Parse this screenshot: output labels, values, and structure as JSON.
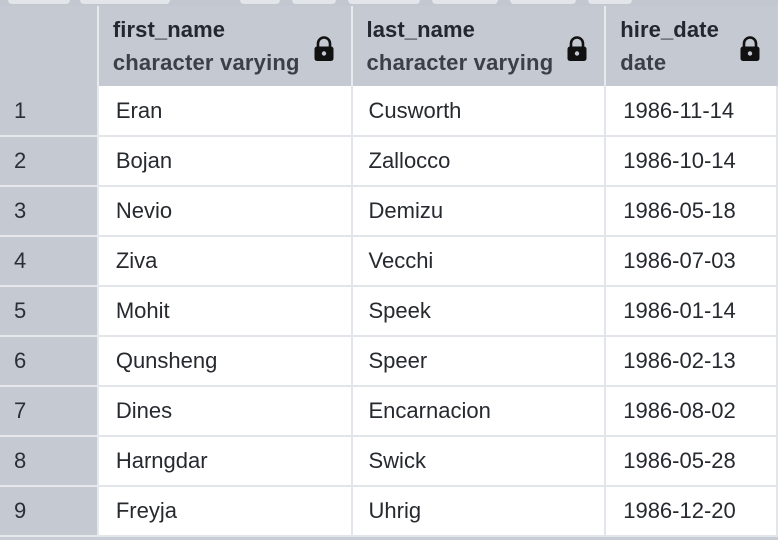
{
  "columns": [
    {
      "name": "first_name",
      "type": "character varying",
      "icon": "lock-icon"
    },
    {
      "name": "last_name",
      "type": "character varying",
      "icon": "lock-icon"
    },
    {
      "name": "hire_date",
      "type": "date",
      "icon": "lock-icon"
    }
  ],
  "rows": [
    {
      "num": "1",
      "first_name": "Eran",
      "last_name": "Cusworth",
      "hire_date": "1986-11-14"
    },
    {
      "num": "2",
      "first_name": "Bojan",
      "last_name": "Zallocco",
      "hire_date": "1986-10-14"
    },
    {
      "num": "3",
      "first_name": "Nevio",
      "last_name": "Demizu",
      "hire_date": "1986-05-18"
    },
    {
      "num": "4",
      "first_name": "Ziva",
      "last_name": "Vecchi",
      "hire_date": "1986-07-03"
    },
    {
      "num": "5",
      "first_name": "Mohit",
      "last_name": "Speek",
      "hire_date": "1986-01-14"
    },
    {
      "num": "6",
      "first_name": "Qunsheng",
      "last_name": "Speer",
      "hire_date": "1986-02-13"
    },
    {
      "num": "7",
      "first_name": "Dines",
      "last_name": "Encarnacion",
      "hire_date": "1986-08-02"
    },
    {
      "num": "8",
      "first_name": "Harngdar",
      "last_name": "Swick",
      "hire_date": "1986-05-28"
    },
    {
      "num": "9",
      "first_name": "Freyja",
      "last_name": "Uhrig",
      "hire_date": "1986-12-20"
    }
  ],
  "colors": {
    "header_bg": "#c5c9d1",
    "grid_line": "#e2e5ea",
    "cell_bg": "#ffffff",
    "text": "#26292e"
  }
}
